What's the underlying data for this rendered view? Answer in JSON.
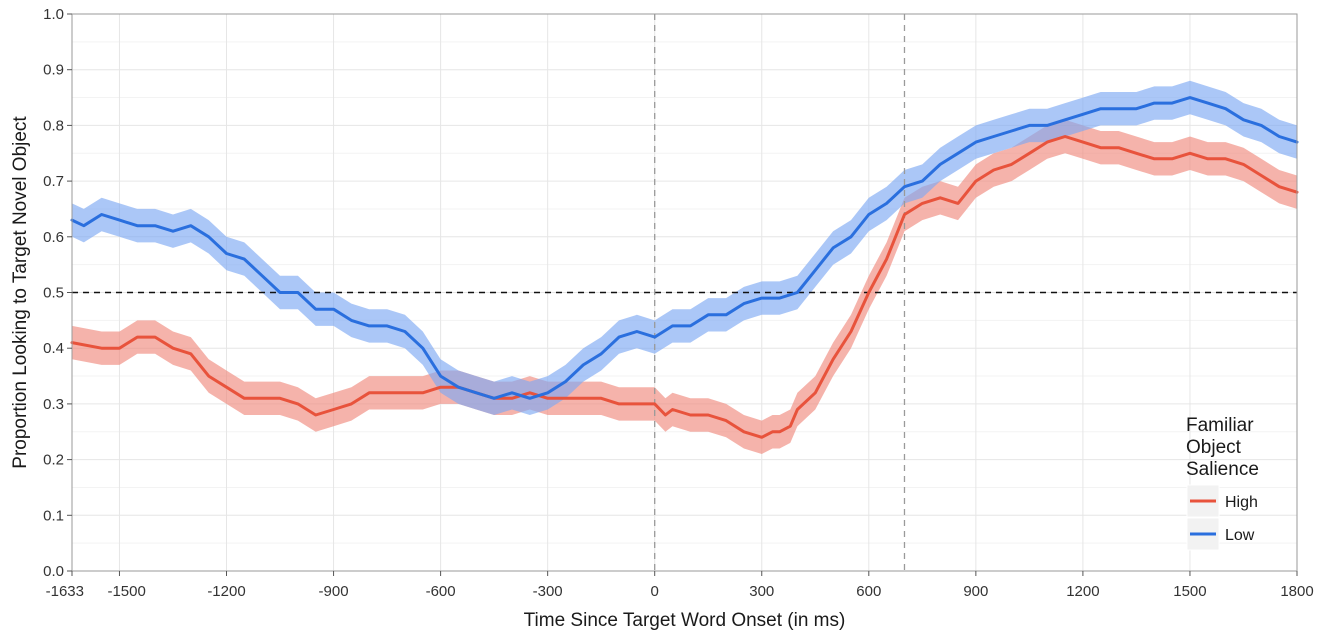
{
  "chart_data": {
    "type": "line",
    "xlabel": "Time Since Target Word Onset (in ms)",
    "ylabel": "Proportion Looking to Target Novel Object",
    "xlim": [
      -1633,
      1800
    ],
    "ylim": [
      0,
      1
    ],
    "x_ticks": [
      -1633,
      -1500,
      -1200,
      -900,
      -600,
      -300,
      0,
      300,
      600,
      900,
      1200,
      1500,
      1800
    ],
    "x_tick_labels": [
      "-1633",
      "-1500",
      "-1200",
      "-900",
      "-600",
      "-300",
      "0",
      "300",
      "600",
      "900",
      "1200",
      "1500",
      "1800"
    ],
    "y_ticks": [
      0,
      0.1,
      0.2,
      0.3,
      0.4,
      0.5,
      0.6,
      0.7,
      0.8,
      0.9,
      1
    ],
    "y_tick_labels": [
      "0.0",
      "0.1",
      "0.2",
      "0.3",
      "0.4",
      "0.5",
      "0.6",
      "0.7",
      "0.8",
      "0.9",
      "1.0"
    ],
    "grid": true,
    "reference_lines": {
      "horizontal_dashed": 0.5,
      "vertical_dashed": [
        0,
        700
      ]
    },
    "legend": {
      "title_lines": [
        "Familiar",
        "Object",
        "Salience"
      ],
      "placement": "bottom-right"
    },
    "series": [
      {
        "name": "High",
        "color": "#e8533c",
        "band_color": "#f08a7e",
        "band_halfwidth": 0.03,
        "points": [
          [
            -1633,
            0.41
          ],
          [
            -1550,
            0.4
          ],
          [
            -1500,
            0.4
          ],
          [
            -1450,
            0.42
          ],
          [
            -1400,
            0.42
          ],
          [
            -1350,
            0.4
          ],
          [
            -1300,
            0.39
          ],
          [
            -1250,
            0.35
          ],
          [
            -1200,
            0.33
          ],
          [
            -1150,
            0.31
          ],
          [
            -1100,
            0.31
          ],
          [
            -1050,
            0.31
          ],
          [
            -1000,
            0.3
          ],
          [
            -950,
            0.28
          ],
          [
            -900,
            0.29
          ],
          [
            -850,
            0.3
          ],
          [
            -800,
            0.32
          ],
          [
            -750,
            0.32
          ],
          [
            -700,
            0.32
          ],
          [
            -650,
            0.32
          ],
          [
            -600,
            0.33
          ],
          [
            -550,
            0.33
          ],
          [
            -500,
            0.32
          ],
          [
            -450,
            0.31
          ],
          [
            -400,
            0.31
          ],
          [
            -350,
            0.32
          ],
          [
            -300,
            0.31
          ],
          [
            -250,
            0.31
          ],
          [
            -200,
            0.31
          ],
          [
            -150,
            0.31
          ],
          [
            -100,
            0.3
          ],
          [
            -50,
            0.3
          ],
          [
            0,
            0.3
          ],
          [
            30,
            0.28
          ],
          [
            50,
            0.29
          ],
          [
            100,
            0.28
          ],
          [
            150,
            0.28
          ],
          [
            200,
            0.27
          ],
          [
            250,
            0.25
          ],
          [
            300,
            0.24
          ],
          [
            330,
            0.25
          ],
          [
            350,
            0.25
          ],
          [
            380,
            0.26
          ],
          [
            400,
            0.29
          ],
          [
            450,
            0.32
          ],
          [
            500,
            0.38
          ],
          [
            550,
            0.43
          ],
          [
            600,
            0.5
          ],
          [
            650,
            0.56
          ],
          [
            700,
            0.64
          ],
          [
            750,
            0.66
          ],
          [
            800,
            0.67
          ],
          [
            850,
            0.66
          ],
          [
            900,
            0.7
          ],
          [
            950,
            0.72
          ],
          [
            1000,
            0.73
          ],
          [
            1050,
            0.75
          ],
          [
            1100,
            0.77
          ],
          [
            1150,
            0.78
          ],
          [
            1200,
            0.77
          ],
          [
            1250,
            0.76
          ],
          [
            1300,
            0.76
          ],
          [
            1350,
            0.75
          ],
          [
            1400,
            0.74
          ],
          [
            1450,
            0.74
          ],
          [
            1500,
            0.75
          ],
          [
            1550,
            0.74
          ],
          [
            1600,
            0.74
          ],
          [
            1650,
            0.73
          ],
          [
            1700,
            0.71
          ],
          [
            1750,
            0.69
          ],
          [
            1800,
            0.68
          ]
        ]
      },
      {
        "name": "Low",
        "color": "#2a6fde",
        "band_color": "#7ea9f2",
        "band_halfwidth": 0.03,
        "points": [
          [
            -1633,
            0.63
          ],
          [
            -1600,
            0.62
          ],
          [
            -1550,
            0.64
          ],
          [
            -1500,
            0.63
          ],
          [
            -1450,
            0.62
          ],
          [
            -1400,
            0.62
          ],
          [
            -1350,
            0.61
          ],
          [
            -1300,
            0.62
          ],
          [
            -1250,
            0.6
          ],
          [
            -1200,
            0.57
          ],
          [
            -1150,
            0.56
          ],
          [
            -1100,
            0.53
          ],
          [
            -1050,
            0.5
          ],
          [
            -1000,
            0.5
          ],
          [
            -950,
            0.47
          ],
          [
            -900,
            0.47
          ],
          [
            -850,
            0.45
          ],
          [
            -800,
            0.44
          ],
          [
            -750,
            0.44
          ],
          [
            -700,
            0.43
          ],
          [
            -650,
            0.4
          ],
          [
            -600,
            0.35
          ],
          [
            -550,
            0.33
          ],
          [
            -500,
            0.32
          ],
          [
            -450,
            0.31
          ],
          [
            -400,
            0.32
          ],
          [
            -350,
            0.31
          ],
          [
            -300,
            0.32
          ],
          [
            -250,
            0.34
          ],
          [
            -200,
            0.37
          ],
          [
            -150,
            0.39
          ],
          [
            -100,
            0.42
          ],
          [
            -50,
            0.43
          ],
          [
            0,
            0.42
          ],
          [
            50,
            0.44
          ],
          [
            100,
            0.44
          ],
          [
            150,
            0.46
          ],
          [
            200,
            0.46
          ],
          [
            250,
            0.48
          ],
          [
            300,
            0.49
          ],
          [
            350,
            0.49
          ],
          [
            400,
            0.5
          ],
          [
            450,
            0.54
          ],
          [
            500,
            0.58
          ],
          [
            550,
            0.6
          ],
          [
            600,
            0.64
          ],
          [
            650,
            0.66
          ],
          [
            700,
            0.69
          ],
          [
            750,
            0.7
          ],
          [
            800,
            0.73
          ],
          [
            850,
            0.75
          ],
          [
            900,
            0.77
          ],
          [
            950,
            0.78
          ],
          [
            1000,
            0.79
          ],
          [
            1050,
            0.8
          ],
          [
            1100,
            0.8
          ],
          [
            1150,
            0.81
          ],
          [
            1200,
            0.82
          ],
          [
            1250,
            0.83
          ],
          [
            1300,
            0.83
          ],
          [
            1350,
            0.83
          ],
          [
            1400,
            0.84
          ],
          [
            1450,
            0.84
          ],
          [
            1500,
            0.85
          ],
          [
            1550,
            0.84
          ],
          [
            1600,
            0.83
          ],
          [
            1650,
            0.81
          ],
          [
            1700,
            0.8
          ],
          [
            1750,
            0.78
          ],
          [
            1800,
            0.77
          ]
        ]
      }
    ]
  }
}
